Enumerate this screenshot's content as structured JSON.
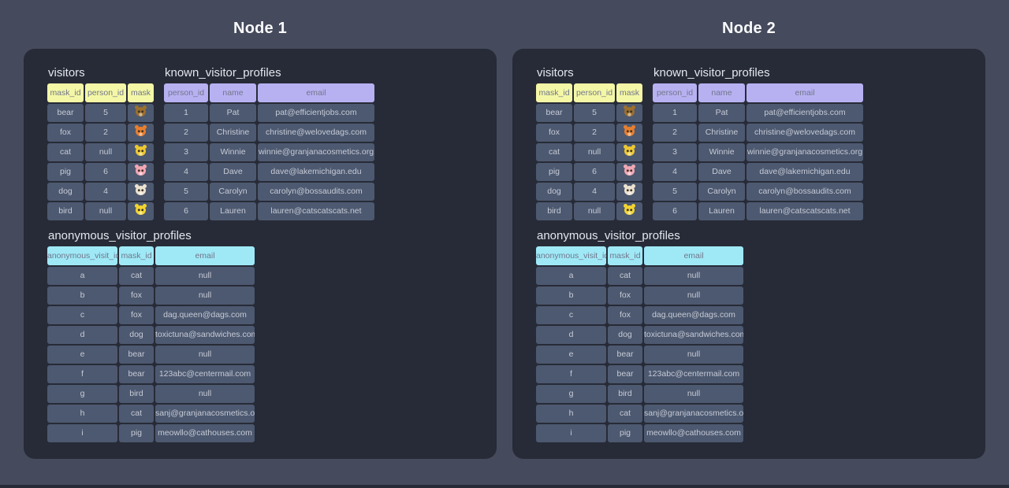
{
  "page": {
    "background": "#454a5c",
    "panel_background": "#272b37",
    "cell_background": "#4d5970"
  },
  "nodes": [
    {
      "title": "Node 1"
    },
    {
      "title": "Node 2"
    }
  ],
  "tables": {
    "visitors": {
      "title": "visitors",
      "header_color": "#f4f7a6",
      "columns": [
        "mask_id",
        "person_id",
        "mask"
      ],
      "icon_column": 2,
      "rows": [
        [
          "bear",
          "5",
          "bear"
        ],
        [
          "fox",
          "2",
          "fox"
        ],
        [
          "cat",
          "null",
          "cat"
        ],
        [
          "pig",
          "6",
          "pig"
        ],
        [
          "dog",
          "4",
          "dog"
        ],
        [
          "bird",
          "null",
          "bird"
        ]
      ]
    },
    "known_visitor_profiles": {
      "title": "known_visitor_profiles",
      "header_color": "#b7b1f2",
      "columns": [
        "person_id",
        "name",
        "email"
      ],
      "rows": [
        [
          "1",
          "Pat",
          "pat@efficientjobs.com"
        ],
        [
          "2",
          "Christine",
          "christine@welovedags.com"
        ],
        [
          "3",
          "Winnie",
          "winnie@granjanacosmetics.org"
        ],
        [
          "4",
          "Dave",
          "dave@lakemichigan.edu"
        ],
        [
          "5",
          "Carolyn",
          "carolyn@bossaudits.com"
        ],
        [
          "6",
          "Lauren",
          "lauren@catscatscats.net"
        ]
      ]
    },
    "anonymous_visitor_profiles": {
      "title": "anonymous_visitor_profiles",
      "header_color": "#9fe9f7",
      "columns": [
        "anonymous_visit_id",
        "mask_id",
        "email"
      ],
      "rows": [
        [
          "a",
          "cat",
          "null"
        ],
        [
          "b",
          "fox",
          "null"
        ],
        [
          "c",
          "fox",
          "dag.queen@dags.com"
        ],
        [
          "d",
          "dog",
          "toxictuna@sandwiches.com"
        ],
        [
          "e",
          "bear",
          "null"
        ],
        [
          "f",
          "bear",
          "123abc@centermail.com"
        ],
        [
          "g",
          "bird",
          "null"
        ],
        [
          "h",
          "cat",
          "sanj@granjanacosmetics.org"
        ],
        [
          "i",
          "pig",
          "meowllo@cathouses.com"
        ]
      ]
    }
  },
  "mask_icons": {
    "bear": {
      "label": "bear face emoji",
      "color": "#9c6f2e"
    },
    "fox": {
      "label": "fox face emoji",
      "color": "#e87f2e"
    },
    "cat": {
      "label": "cat face emoji",
      "color": "#edc832"
    },
    "pig": {
      "label": "pig face emoji",
      "color": "#f2a7b4"
    },
    "dog": {
      "label": "dog face emoji",
      "color": "#ece2d0"
    },
    "bird": {
      "label": "bird face emoji",
      "color": "#f2d431"
    }
  }
}
